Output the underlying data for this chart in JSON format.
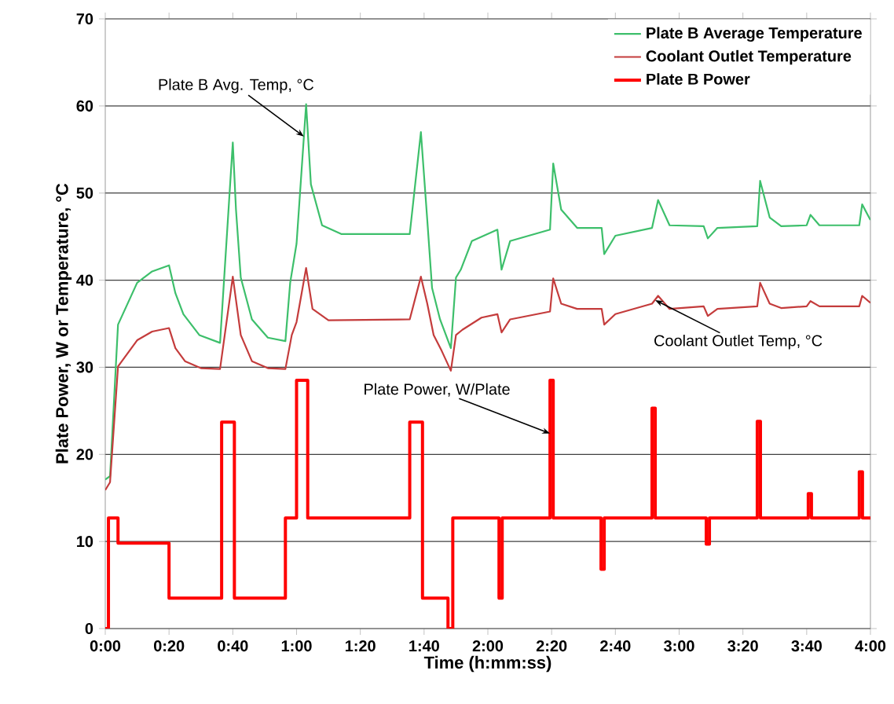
{
  "chart_data": {
    "type": "line",
    "xlabel": "Time (h:mm:ss)",
    "ylabel": "Plate Power, W or Temperature, °C",
    "xlim": [
      0,
      240
    ],
    "xticks": [
      {
        "value": 0,
        "label": "0:00"
      },
      {
        "value": 20,
        "label": "0:20"
      },
      {
        "value": 40,
        "label": "0:40"
      },
      {
        "value": 60,
        "label": "1:00"
      },
      {
        "value": 80,
        "label": "1:20"
      },
      {
        "value": 100,
        "label": "1:40"
      },
      {
        "value": 120,
        "label": "2:00"
      },
      {
        "value": 140,
        "label": "2:20"
      },
      {
        "value": 160,
        "label": "2:40"
      },
      {
        "value": 180,
        "label": "3:00"
      },
      {
        "value": 200,
        "label": "3:20"
      },
      {
        "value": 220,
        "label": "3:40"
      },
      {
        "value": 240,
        "label": "4:00"
      }
    ],
    "ylim": [
      0,
      70
    ],
    "yticks": [
      0,
      10,
      20,
      30,
      40,
      50,
      60,
      70
    ],
    "grid": "y",
    "legend": "top right",
    "series": [
      {
        "name": "Plate B Average Temperature",
        "color": "#3dbf6b",
        "x": [
          0,
          1.5,
          4,
          10,
          14.7,
          20,
          22,
          24.5,
          29.5,
          36,
          40,
          41,
          42.5,
          46,
          51,
          56.5,
          58,
          60,
          63,
          64.5,
          68,
          74,
          95.5,
          99,
          101,
          102.5,
          105,
          108.4,
          110,
          111.5,
          115,
          123,
          124.3,
          127,
          139.5,
          140.5,
          143,
          148,
          155.7,
          156.5,
          160,
          171.5,
          173.4,
          177,
          187.7,
          189,
          192,
          204.5,
          205.4,
          208.4,
          212,
          220,
          221.2,
          224,
          236.5,
          237.4,
          240
        ],
        "values": [
          17.1,
          17.5,
          34.9,
          39.7,
          41,
          41.7,
          38.5,
          36.1,
          33.7,
          32.8,
          55.8,
          48.1,
          40.3,
          35.5,
          33.4,
          33,
          39.7,
          44.2,
          60.2,
          51,
          46.3,
          45.3,
          45.3,
          57,
          46.9,
          39.1,
          35.5,
          32.2,
          40.3,
          41.2,
          44.5,
          45.8,
          41.2,
          44.5,
          45.8,
          53.4,
          48.1,
          46,
          46,
          43,
          45.1,
          46,
          49.2,
          46.3,
          46.2,
          44.8,
          46,
          46.2,
          51.4,
          47.2,
          46.2,
          46.3,
          47.5,
          46.3,
          46.3,
          48.7,
          46.9
        ]
      },
      {
        "name": "Coolant Outlet Temperature",
        "color": "#c43c3c",
        "x": [
          0,
          1.5,
          4,
          10,
          14.7,
          20,
          22,
          25,
          30,
          36,
          40,
          42.5,
          46,
          51,
          56.5,
          58.5,
          60,
          63,
          65,
          70,
          95.5,
          99,
          101,
          103,
          105.5,
          108.4,
          110,
          112,
          118,
          123,
          124.3,
          127,
          139.5,
          140.5,
          143,
          148,
          155.7,
          156.5,
          160,
          171.5,
          173.4,
          177,
          187.7,
          189,
          192,
          204.5,
          205.4,
          208.4,
          212,
          220,
          221.2,
          224,
          236.5,
          237.4,
          240
        ],
        "values": [
          15.9,
          16.8,
          30.1,
          33.1,
          34.1,
          34.5,
          32.2,
          30.7,
          29.9,
          29.8,
          40.4,
          33.7,
          30.7,
          29.9,
          29.8,
          33.7,
          35.2,
          41.4,
          36.7,
          35.4,
          35.5,
          40.4,
          37.3,
          33.7,
          31.9,
          29.6,
          33.7,
          34.3,
          35.7,
          36.1,
          34,
          35.5,
          36.4,
          40.2,
          37.3,
          36.7,
          36.7,
          34.9,
          36.1,
          37.3,
          38.2,
          36.7,
          37,
          35.9,
          36.7,
          37,
          39.7,
          37.3,
          36.8,
          37,
          37.6,
          37,
          37,
          38.2,
          37.4
        ]
      },
      {
        "name": "Plate B Power",
        "type": "step",
        "color": "#ff0000",
        "x": [
          0,
          1,
          4,
          20,
          36.5,
          40.5,
          56.5,
          60,
          63.5,
          95.5,
          99.5,
          107.5,
          109,
          123.5,
          124.5,
          139.5,
          140.5,
          155.5,
          156.5,
          171.5,
          172.5,
          188.5,
          189.5,
          204.5,
          205.5,
          220.5,
          221.5,
          236.5,
          237.5,
          240
        ],
        "values": [
          0,
          12.7,
          9.8,
          3.5,
          23.7,
          3.5,
          12.7,
          28.5,
          12.7,
          23.7,
          3.5,
          0,
          12.7,
          3.5,
          12.7,
          28.5,
          12.7,
          6.8,
          12.7,
          25.3,
          12.7,
          9.7,
          12.7,
          23.8,
          12.7,
          15.5,
          12.7,
          18,
          12.7,
          12.7
        ]
      }
    ],
    "annotations": [
      {
        "text": "Plate B Avg. Temp, °C",
        "x": 62.3,
        "y": 56.5
      },
      {
        "text": "Plate Power, W/Plate",
        "x": 139.5,
        "y": 22.4
      },
      {
        "text": "Coolant Outlet Temp, °C",
        "x": 172.5,
        "y": 37.7
      }
    ]
  }
}
